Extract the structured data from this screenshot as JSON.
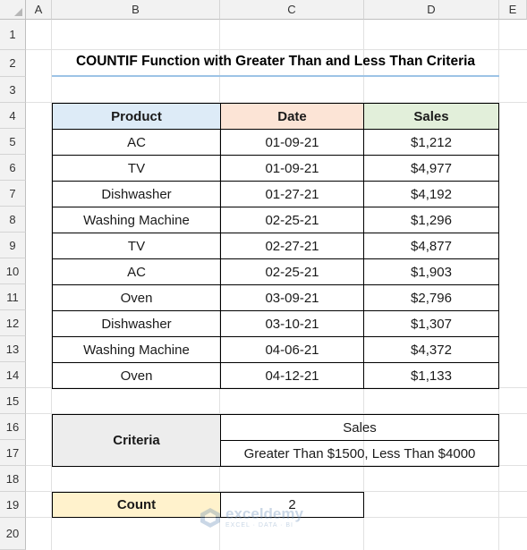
{
  "columns": [
    "A",
    "B",
    "C",
    "D",
    "E"
  ],
  "rows": [
    "1",
    "2",
    "3",
    "4",
    "5",
    "6",
    "7",
    "8",
    "9",
    "10",
    "11",
    "12",
    "13",
    "14",
    "15",
    "16",
    "17",
    "18",
    "19",
    "20"
  ],
  "title": "COUNTIF Function with Greater Than and Less Than Criteria",
  "table": {
    "headers": {
      "product": "Product",
      "date": "Date",
      "sales": "Sales"
    },
    "header_colors": {
      "product": "#ddebf7",
      "date": "#fce4d6",
      "sales": "#e2efda"
    },
    "rows": [
      {
        "product": "AC",
        "date": "01-09-21",
        "sales": "$1,212"
      },
      {
        "product": "TV",
        "date": "01-09-21",
        "sales": "$4,977"
      },
      {
        "product": "Dishwasher",
        "date": "01-27-21",
        "sales": "$4,192"
      },
      {
        "product": "Washing Machine",
        "date": "02-25-21",
        "sales": "$1,296"
      },
      {
        "product": "TV",
        "date": "02-27-21",
        "sales": "$4,877"
      },
      {
        "product": "AC",
        "date": "02-25-21",
        "sales": "$1,903"
      },
      {
        "product": "Oven",
        "date": "03-09-21",
        "sales": "$2,796"
      },
      {
        "product": "Dishwasher",
        "date": "03-10-21",
        "sales": "$1,307"
      },
      {
        "product": "Washing Machine",
        "date": "04-06-21",
        "sales": "$4,372"
      },
      {
        "product": "Oven",
        "date": "04-12-21",
        "sales": "$1,133"
      }
    ]
  },
  "criteria": {
    "label": "Criteria",
    "field": "Sales",
    "condition": "Greater Than $1500, Less Than $4000",
    "label_color": "#ededed"
  },
  "count": {
    "label": "Count",
    "value": "2",
    "label_color": "#fff2cc"
  },
  "watermark": {
    "name": "exceldemy",
    "tagline": "EXCEL · DATA · BI"
  }
}
